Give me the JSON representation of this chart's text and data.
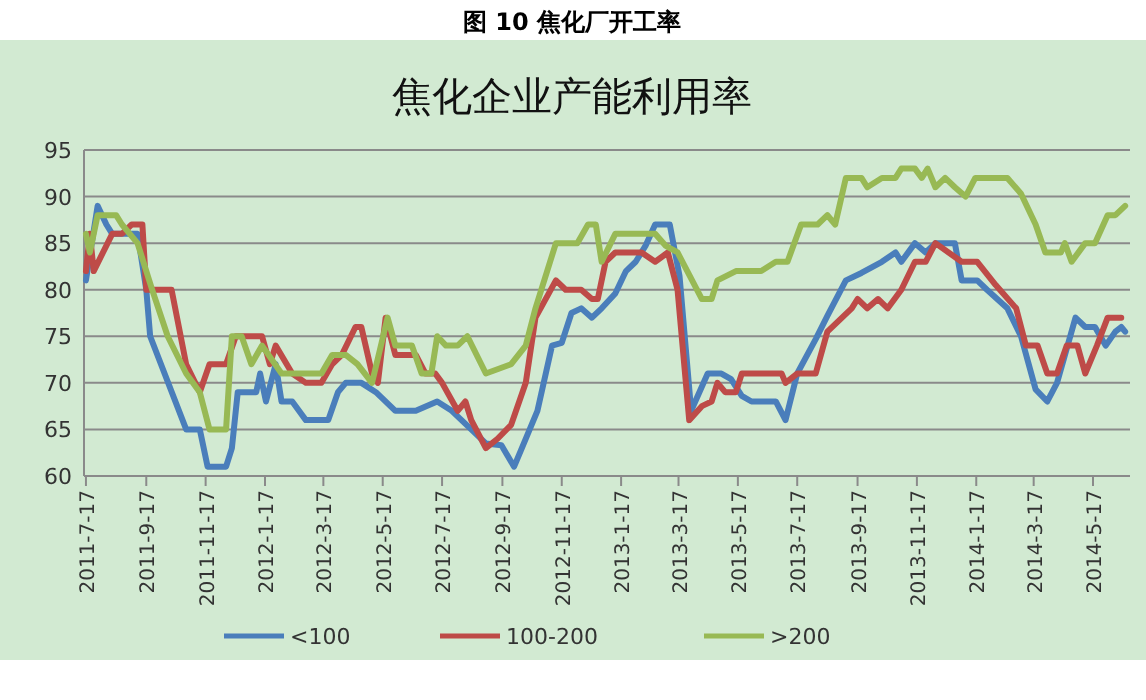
{
  "chart_data": {
    "type": "line",
    "title": "图 10 焦化厂开工率",
    "subtitle": "焦化企业产能利用率",
    "xlim": [
      "2011-07-15",
      "2014-06-24"
    ],
    "xticks": [
      {
        "value": "2011-07-17",
        "label": "2011-7-17"
      },
      {
        "value": "2011-09-17",
        "label": "2011-9-17"
      },
      {
        "value": "2011-11-17",
        "label": "2011-11-17"
      },
      {
        "value": "2012-01-17",
        "label": "2012-1-17"
      },
      {
        "value": "2012-03-17",
        "label": "2012-3-17"
      },
      {
        "value": "2012-05-17",
        "label": "2012-5-17"
      },
      {
        "value": "2012-07-17",
        "label": "2012-7-17"
      },
      {
        "value": "2012-09-17",
        "label": "2012-9-17"
      },
      {
        "value": "2012-11-17",
        "label": "2012-11-17"
      },
      {
        "value": "2013-01-17",
        "label": "2013-1-17"
      },
      {
        "value": "2013-03-17",
        "label": "2013-3-17"
      },
      {
        "value": "2013-05-17",
        "label": "2013-5-17"
      },
      {
        "value": "2013-07-17",
        "label": "2013-7-17"
      },
      {
        "value": "2013-09-17",
        "label": "2013-9-17"
      },
      {
        "value": "2013-11-17",
        "label": "2013-11-17"
      },
      {
        "value": "2014-01-17",
        "label": "2014-1-17"
      },
      {
        "value": "2014-03-17",
        "label": "2014-3-17"
      },
      {
        "value": "2014-05-17",
        "label": "2014-5-17"
      }
    ],
    "ylim": [
      60,
      95
    ],
    "yticks": [
      60,
      65,
      70,
      75,
      80,
      85,
      90,
      95
    ],
    "grid": "y",
    "legend": "bottom",
    "series": [
      {
        "name": "<100",
        "color": "#4a7ebb",
        "x": [
          "2011-07-17",
          "2011-07-29",
          "2011-08-07",
          "2011-08-13",
          "2011-09-08",
          "2011-09-17",
          "2011-09-21",
          "2011-10-28",
          "2011-11-11",
          "2011-11-19",
          "2011-12-08",
          "2011-12-14",
          "2011-12-20",
          "2012-01-08",
          "2012-01-12",
          "2012-01-18",
          "2012-01-28",
          "2012-02-03",
          "2012-02-14",
          "2012-02-28",
          "2012-03-22",
          "2012-04-01",
          "2012-04-09",
          "2012-04-25",
          "2012-05-10",
          "2012-05-30",
          "2012-06-20",
          "2012-07-12",
          "2012-07-27",
          "2012-08-06",
          "2012-08-31",
          "2012-09-16",
          "2012-09-29",
          "2012-10-07",
          "2012-10-23",
          "2012-11-07",
          "2012-11-17",
          "2012-11-27",
          "2012-12-07",
          "2012-12-18",
          "2012-12-28",
          "2013-01-11",
          "2013-01-22",
          "2013-02-01",
          "2013-02-11",
          "2013-02-21",
          "2013-03-08",
          "2013-03-18",
          "2013-03-30",
          "2013-04-16",
          "2013-04-30",
          "2013-05-10",
          "2013-05-21",
          "2013-05-31",
          "2013-06-25",
          "2013-07-05",
          "2013-07-17",
          "2013-08-05",
          "2013-08-17",
          "2013-09-05",
          "2013-09-21",
          "2013-10-12",
          "2013-10-26",
          "2013-11-01",
          "2013-11-15",
          "2013-11-26",
          "2013-12-06",
          "2013-12-26",
          "2014-01-02",
          "2014-01-18",
          "2014-01-28",
          "2014-02-18",
          "2014-03-04",
          "2014-03-19",
          "2014-03-31",
          "2014-04-10",
          "2014-04-29",
          "2014-05-09",
          "2014-05-19",
          "2014-05-30",
          "2014-06-09",
          "2014-06-15",
          "2014-06-19"
        ],
        "values": [
          81,
          89,
          87,
          86,
          86,
          80,
          75,
          65,
          65,
          61,
          61,
          63,
          69,
          69,
          71,
          68,
          72,
          68,
          68,
          66,
          66,
          69,
          70,
          70,
          69,
          67,
          67,
          68,
          67,
          66,
          63.5,
          63.3,
          61,
          63,
          67,
          74,
          74.3,
          77.5,
          78,
          77,
          78,
          79.6,
          82,
          83,
          84.7,
          87,
          87,
          81.5,
          67,
          71,
          71,
          70.4,
          68.6,
          68,
          68,
          66,
          71,
          74.7,
          77.2,
          81,
          81.8,
          83,
          84,
          83,
          85,
          84,
          85,
          85,
          81,
          81,
          80,
          78,
          75,
          69.3,
          68,
          70,
          77,
          76,
          76,
          74,
          75.5,
          76,
          75.5
        ]
      },
      {
        "name": "100-200",
        "color": "#be4b48",
        "x": [
          "2011-07-17",
          "2011-07-21",
          "2011-07-25",
          "2011-08-13",
          "2011-08-23",
          "2011-09-02",
          "2011-09-13",
          "2011-09-17",
          "2011-10-13",
          "2011-10-28",
          "2011-11-11",
          "2011-11-21",
          "2011-12-08",
          "2011-12-18",
          "2012-01-14",
          "2012-01-22",
          "2012-01-28",
          "2012-02-14",
          "2012-02-28",
          "2012-03-15",
          "2012-03-26",
          "2012-04-05",
          "2012-04-19",
          "2012-04-25",
          "2012-05-06",
          "2012-05-12",
          "2012-05-20",
          "2012-05-30",
          "2012-06-20",
          "2012-06-30",
          "2012-07-10",
          "2012-07-17",
          "2012-08-02",
          "2012-08-10",
          "2012-08-16",
          "2012-08-31",
          "2012-09-12",
          "2012-09-26",
          "2012-10-11",
          "2012-10-21",
          "2012-11-11",
          "2012-11-21",
          "2012-12-07",
          "2012-12-18",
          "2012-12-24",
          "2013-01-01",
          "2013-01-11",
          "2013-02-07",
          "2013-02-21",
          "2013-03-06",
          "2013-03-16",
          "2013-03-28",
          "2013-04-10",
          "2013-04-20",
          "2013-04-26",
          "2013-05-04",
          "2013-05-15",
          "2013-05-21",
          "2013-06-14",
          "2013-07-01",
          "2013-07-05",
          "2013-07-17",
          "2013-08-05",
          "2013-08-17",
          "2013-09-11",
          "2013-09-17",
          "2013-09-27",
          "2013-10-08",
          "2013-10-18",
          "2013-11-01",
          "2013-11-15",
          "2013-11-26",
          "2013-12-06",
          "2014-01-02",
          "2014-01-18",
          "2014-02-06",
          "2014-02-27",
          "2014-03-09",
          "2014-03-21",
          "2014-03-31",
          "2014-04-10",
          "2014-04-20",
          "2014-05-01",
          "2014-05-09",
          "2014-05-21",
          "2014-06-01",
          "2014-06-15"
        ],
        "values": [
          82,
          86,
          82,
          86,
          86,
          87,
          87,
          80,
          80,
          72,
          69,
          72,
          72,
          75,
          75,
          72,
          74,
          71,
          70,
          70,
          72,
          73,
          76,
          76,
          71,
          70,
          77,
          73,
          73,
          71,
          71,
          70,
          67,
          68,
          66,
          63,
          64,
          65.5,
          70,
          77,
          81,
          80,
          80,
          79,
          79,
          83,
          84,
          84,
          83,
          84,
          80,
          66,
          67.5,
          68,
          70,
          69,
          69,
          71,
          71,
          71,
          70,
          71,
          71,
          75.5,
          78,
          79,
          78,
          79,
          78,
          80,
          83,
          83,
          85,
          83,
          83,
          80.5,
          78,
          74,
          74,
          71,
          71,
          74,
          74,
          71,
          74,
          77,
          77
        ]
      },
      {
        "name": ">200",
        "color": "#98b954",
        "x": [
          "2011-07-17",
          "2011-07-21",
          "2011-07-29",
          "2011-08-17",
          "2011-08-23",
          "2011-09-08",
          "2011-09-23",
          "2011-10-09",
          "2011-10-28",
          "2011-11-11",
          "2011-11-21",
          "2011-12-08",
          "2011-12-14",
          "2011-12-24",
          "2012-01-03",
          "2012-01-14",
          "2012-02-03",
          "2012-02-14",
          "2012-03-15",
          "2012-03-26",
          "2012-04-09",
          "2012-04-21",
          "2012-05-06",
          "2012-05-22",
          "2012-05-30",
          "2012-06-16",
          "2012-06-26",
          "2012-07-06",
          "2012-07-12",
          "2012-07-21",
          "2012-08-02",
          "2012-08-12",
          "2012-08-31",
          "2012-09-26",
          "2012-10-11",
          "2012-10-21",
          "2012-11-11",
          "2012-12-03",
          "2012-12-14",
          "2012-12-22",
          "2012-12-28",
          "2013-01-11",
          "2013-02-21",
          "2013-03-04",
          "2013-03-16",
          "2013-03-26",
          "2013-04-10",
          "2013-04-20",
          "2013-04-26",
          "2013-05-15",
          "2013-06-10",
          "2013-06-25",
          "2013-07-07",
          "2013-07-21",
          "2013-08-07",
          "2013-08-17",
          "2013-08-25",
          "2013-09-05",
          "2013-09-21",
          "2013-09-27",
          "2013-10-12",
          "2013-10-26",
          "2013-11-01",
          "2013-11-15",
          "2013-11-22",
          "2013-11-28",
          "2013-12-06",
          "2013-12-16",
          "2013-12-26",
          "2014-01-06",
          "2014-01-16",
          "2014-02-18",
          "2014-03-04",
          "2014-03-19",
          "2014-03-29",
          "2014-04-14",
          "2014-04-18",
          "2014-04-25",
          "2014-05-09",
          "2014-05-19",
          "2014-06-01",
          "2014-06-09",
          "2014-06-19"
        ],
        "values": [
          86,
          84,
          88,
          88,
          87,
          85,
          80,
          75,
          71,
          69,
          65,
          65,
          75,
          75,
          72,
          74,
          71,
          71,
          71,
          73,
          73,
          72,
          70,
          77,
          74,
          74,
          71,
          71,
          75,
          74,
          74,
          75,
          71,
          72,
          74,
          78,
          85,
          85,
          87,
          87,
          83,
          86,
          86,
          84.7,
          84,
          82,
          79,
          79,
          81,
          82,
          82,
          83,
          83,
          87,
          87,
          88,
          87,
          92,
          92,
          91,
          92,
          92,
          93,
          93,
          92,
          93,
          91,
          92,
          91,
          90,
          92,
          92,
          90.3,
          87,
          84,
          84,
          85,
          83,
          85,
          85,
          88,
          88,
          89
        ]
      }
    ]
  }
}
